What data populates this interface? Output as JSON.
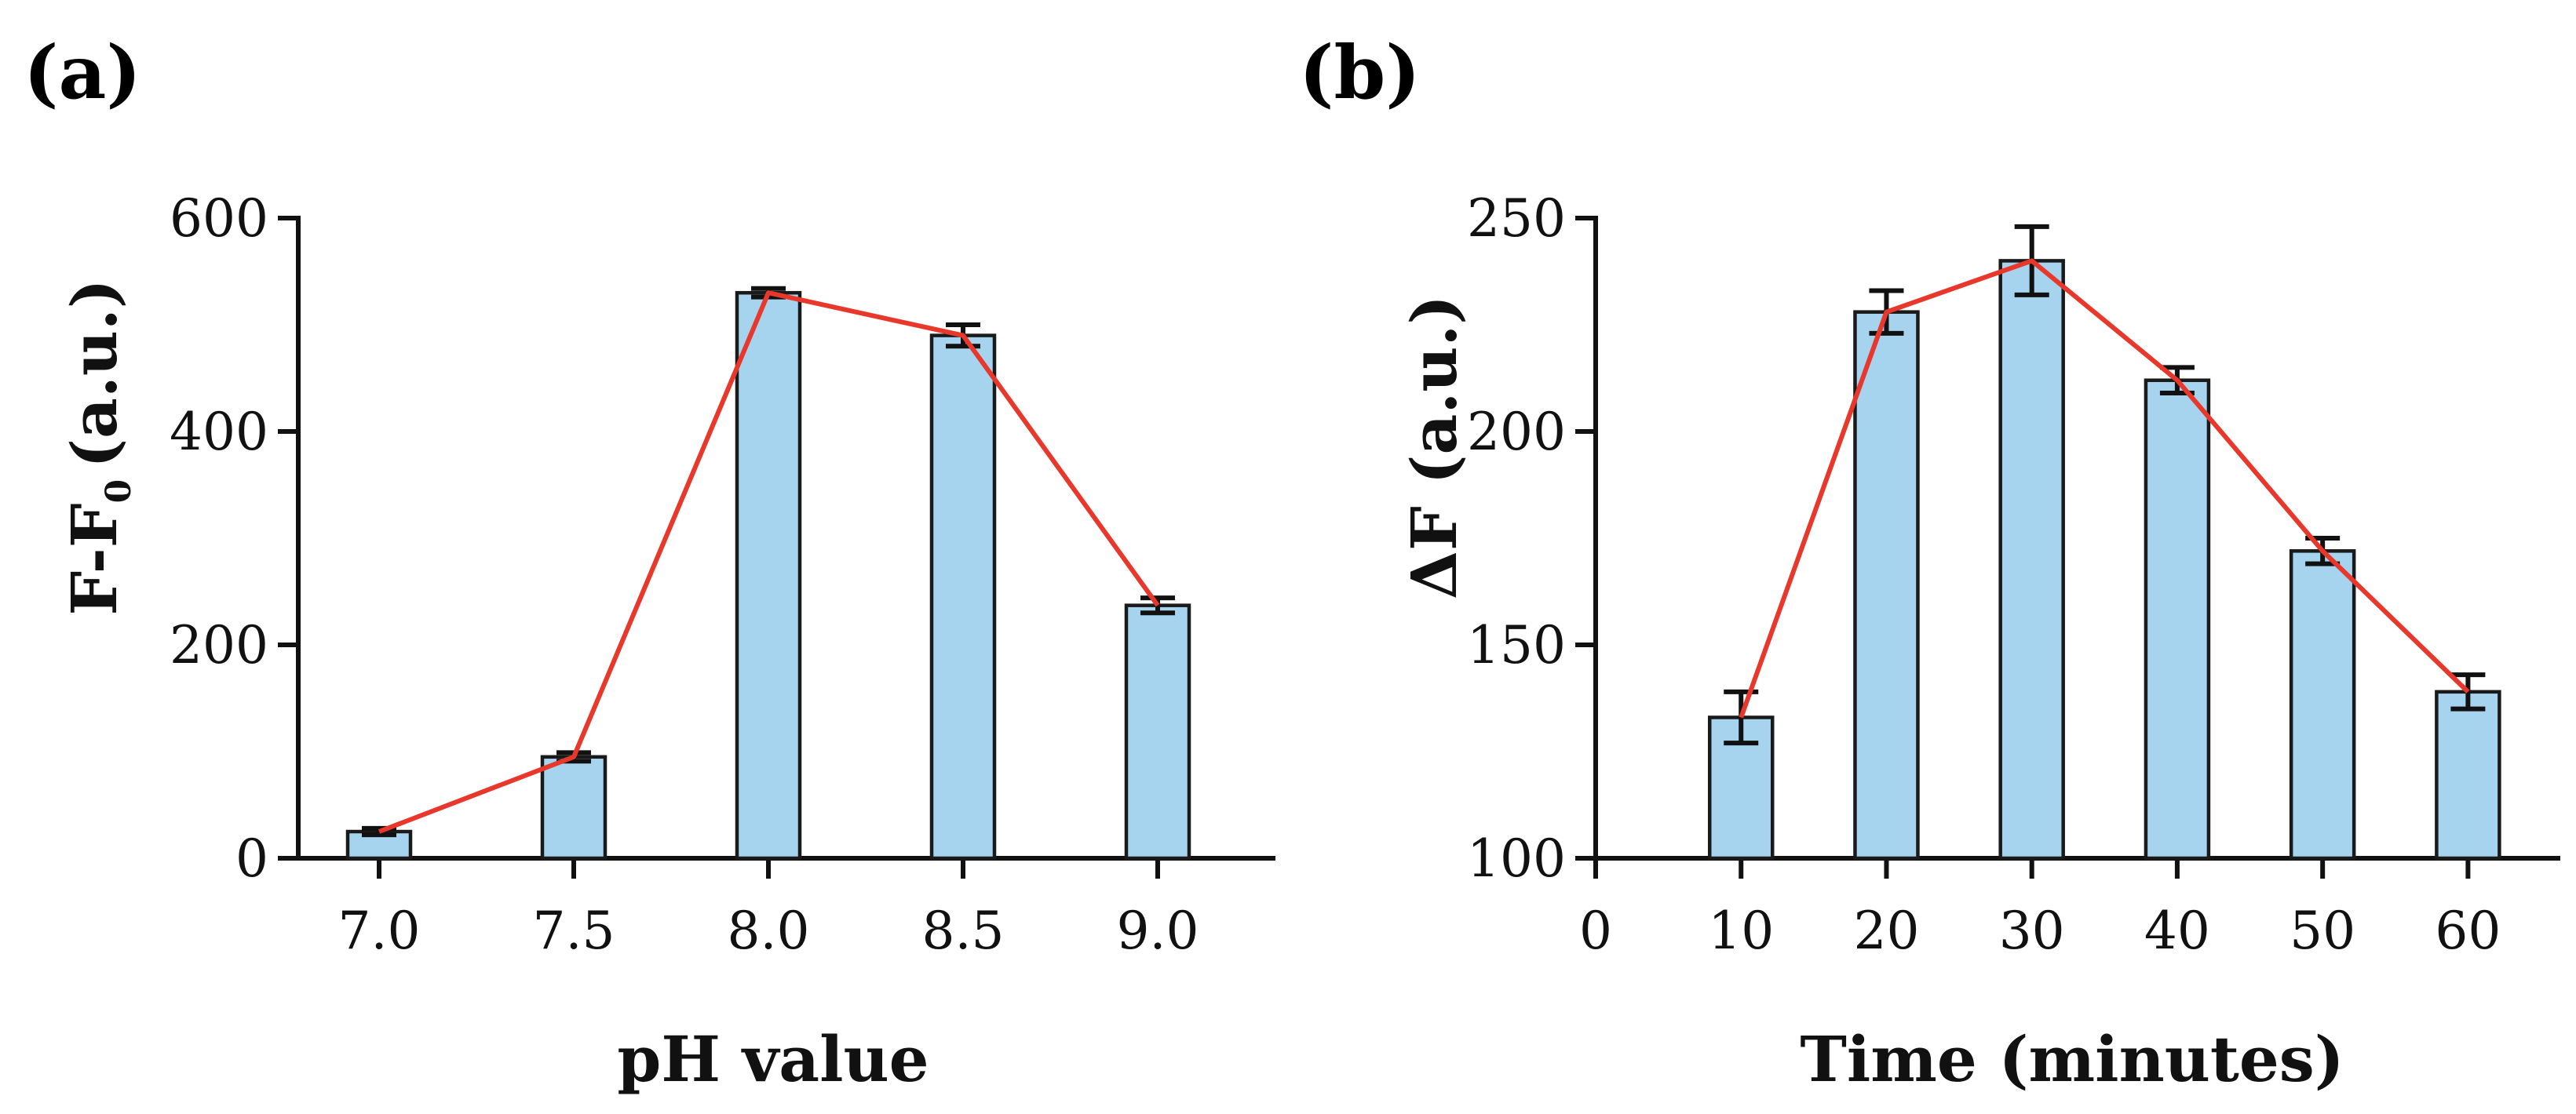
{
  "chart_data": [
    {
      "panel_label": "(a)",
      "type": "bar",
      "xlabel": "pH value",
      "ylabel": "F-F0 (a.u.)",
      "ylabel_parts": {
        "main": "F-F",
        "subscript": "0",
        "suffix": "(a.u.)"
      },
      "categories": [
        "7.0",
        "7.5",
        "8.0",
        "8.5",
        "9.0"
      ],
      "values": [
        25,
        95,
        530,
        490,
        237
      ],
      "errors": [
        3,
        4,
        4,
        10,
        7
      ],
      "ylim": [
        0,
        600
      ],
      "yticks": [
        0,
        200,
        400,
        600
      ],
      "overlay": "line",
      "bar_color": "#a6d4ef",
      "line_color": "#e8372b"
    },
    {
      "panel_label": "(b)",
      "type": "bar",
      "xlabel": "Time (minutes)",
      "ylabel": "ΔF (a.u.)",
      "x": [
        10,
        20,
        30,
        40,
        50,
        60
      ],
      "values": [
        133,
        228,
        240,
        212,
        172,
        139
      ],
      "errors": [
        6,
        5,
        8,
        3,
        3,
        4
      ],
      "xlim": [
        0,
        65
      ],
      "xticks": [
        0,
        10,
        20,
        30,
        40,
        50,
        60
      ],
      "ylim": [
        100,
        250
      ],
      "yticks": [
        100,
        150,
        200,
        250
      ],
      "overlay": "line",
      "bar_color": "#a6d4ef",
      "line_color": "#e8372b"
    }
  ]
}
